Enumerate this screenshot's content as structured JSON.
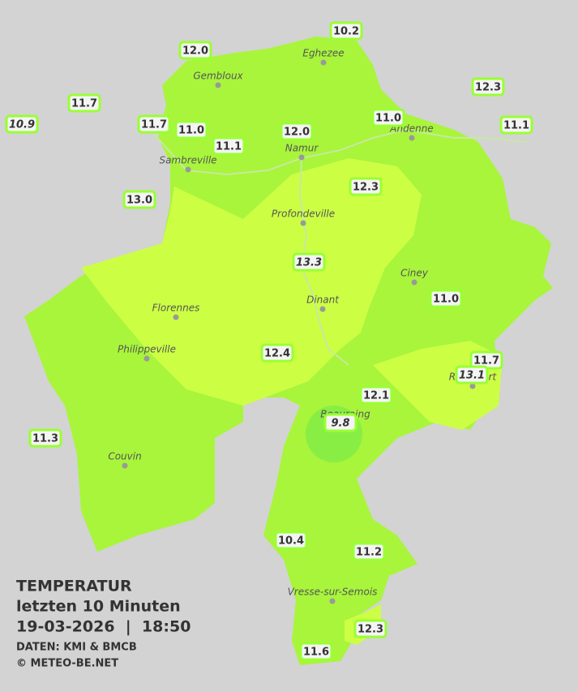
{
  "legend": {
    "title": "TEMPERATUR",
    "subtitle": "letzten 10 Minuten",
    "datetime": "19-03-2026  |  18:50",
    "source": "DATEN: KMI & BMCB",
    "copyright": "© METEO-BE.NET"
  },
  "cities": [
    "Eghezee",
    "Gembloux",
    "Andenne",
    "Namur",
    "Sambreville",
    "Profondeville",
    "Ciney",
    "Dinant",
    "Florennes",
    "Philippeville",
    "Rochefort",
    "Beauraing",
    "Couvin",
    "Vresse-sur-Semois"
  ],
  "stations": [
    "10.2",
    "12.0",
    "11.7",
    "10.9",
    "11.7",
    "11.0",
    "11.1",
    "12.0",
    "11.0",
    "12.3",
    "11.1",
    "13.0",
    "12.3",
    "13.3",
    "11.0",
    "12.4",
    "11.7",
    "13.1",
    "12.1",
    "9.8",
    "11.3",
    "10.4",
    "11.2",
    "12.3",
    "11.6"
  ]
}
